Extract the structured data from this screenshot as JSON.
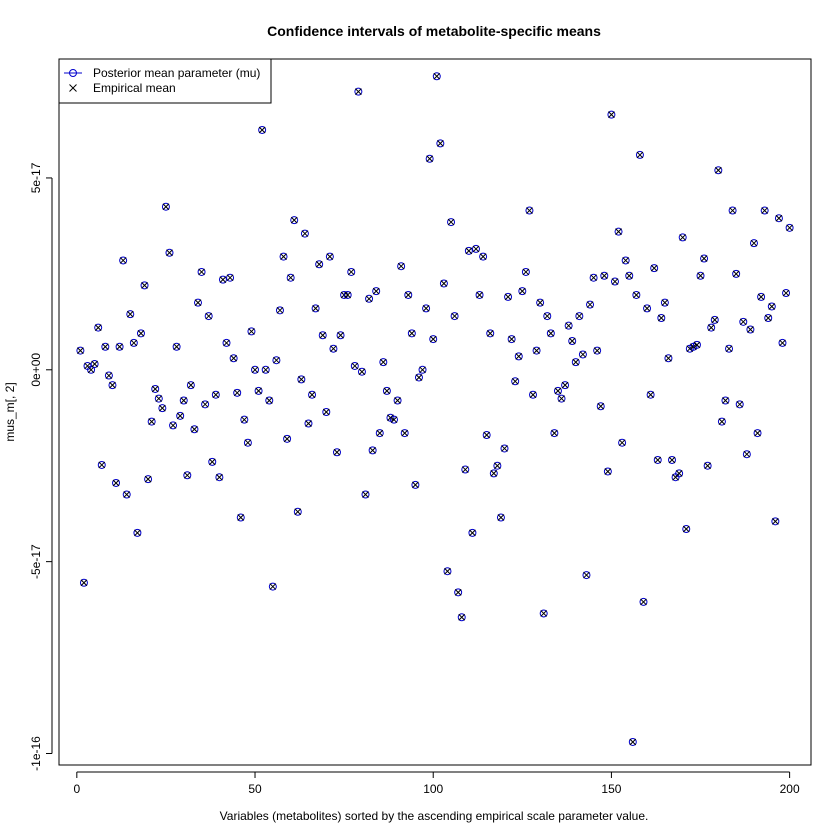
{
  "chart_data": {
    "type": "scatter",
    "title": "Confidence intervals of metabolite-specific means",
    "xlabel": "Variables (metabolites) sorted by the ascending empirical scale parameter value.",
    "ylabel": "mus_m[, 2]",
    "xlim": [
      -5,
      206
    ],
    "ylim": [
      -1.03e-16,
      8.1e-17
    ],
    "x_ticks": [
      0,
      50,
      100,
      150,
      200
    ],
    "x_tick_labels": [
      "0",
      "50",
      "100",
      "150",
      "200"
    ],
    "y_ticks": [
      -1e-16,
      -5e-17,
      0,
      5e-17
    ],
    "y_tick_labels": [
      "-1e-16",
      "-5e-17",
      "0e+00",
      "5e-17"
    ],
    "grid": false,
    "legend_position": "top-left",
    "series": [
      {
        "name": "Posterior mean parameter (mu)",
        "marker": "circle",
        "color": "#0000cc",
        "points": [
          [
            1,
            0.5
          ],
          [
            2,
            -5.55
          ],
          [
            3,
            0.1
          ],
          [
            4,
            0.0
          ],
          [
            5,
            0.15
          ],
          [
            6,
            1.1
          ],
          [
            7,
            -2.48
          ],
          [
            8,
            0.6
          ],
          [
            9,
            -0.15
          ],
          [
            10,
            -0.4
          ],
          [
            11,
            -2.95
          ],
          [
            12,
            0.6
          ],
          [
            13,
            2.85
          ],
          [
            14,
            -3.25
          ],
          [
            15,
            1.45
          ],
          [
            16,
            0.7
          ],
          [
            17,
            -4.25
          ],
          [
            18,
            0.95
          ],
          [
            19,
            2.2
          ],
          [
            20,
            -2.85
          ],
          [
            21,
            -1.35
          ],
          [
            22,
            -0.5
          ],
          [
            23,
            -0.75
          ],
          [
            24,
            -1.0
          ],
          [
            25,
            4.25
          ],
          [
            26,
            3.05
          ],
          [
            27,
            -1.45
          ],
          [
            28,
            0.6
          ],
          [
            29,
            -1.2
          ],
          [
            30,
            -0.8
          ],
          [
            31,
            -2.75
          ],
          [
            32,
            -0.4
          ],
          [
            33,
            -1.55
          ],
          [
            34,
            1.75
          ],
          [
            35,
            2.55
          ],
          [
            36,
            -0.9
          ],
          [
            37,
            1.4
          ],
          [
            38,
            -2.4
          ],
          [
            39,
            -0.65
          ],
          [
            40,
            -2.8
          ],
          [
            41,
            2.35
          ],
          [
            42,
            0.7
          ],
          [
            43,
            2.4
          ],
          [
            44,
            0.3
          ],
          [
            45,
            -0.6
          ],
          [
            46,
            -3.85
          ],
          [
            47,
            -1.3
          ],
          [
            48,
            -1.9
          ],
          [
            49,
            1.0
          ],
          [
            50,
            0.0
          ],
          [
            51,
            -0.55
          ],
          [
            52,
            6.25
          ],
          [
            53,
            0.0
          ],
          [
            54,
            -0.8
          ],
          [
            55,
            -5.65
          ],
          [
            56,
            0.25
          ],
          [
            57,
            1.55
          ],
          [
            58,
            2.95
          ],
          [
            59,
            -1.8
          ],
          [
            60,
            2.4
          ],
          [
            61,
            3.9
          ],
          [
            62,
            -3.7
          ],
          [
            63,
            -0.25
          ],
          [
            64,
            3.55
          ],
          [
            65,
            -1.4
          ],
          [
            66,
            -0.65
          ],
          [
            67,
            1.6
          ],
          [
            68,
            2.75
          ],
          [
            69,
            0.9
          ],
          [
            70,
            -1.1
          ],
          [
            71,
            2.95
          ],
          [
            72,
            0.55
          ],
          [
            73,
            -2.15
          ],
          [
            74,
            0.9
          ],
          [
            75,
            1.95
          ],
          [
            76,
            1.95
          ],
          [
            77,
            2.55
          ],
          [
            78,
            0.1
          ],
          [
            79,
            7.25
          ],
          [
            80,
            -0.05
          ],
          [
            81,
            -3.25
          ],
          [
            82,
            1.85
          ],
          [
            83,
            -2.1
          ],
          [
            84,
            2.05
          ],
          [
            85,
            -1.65
          ],
          [
            86,
            0.2
          ],
          [
            87,
            -0.55
          ],
          [
            88,
            -1.25
          ],
          [
            89,
            -1.3
          ],
          [
            90,
            -0.8
          ],
          [
            91,
            2.7
          ],
          [
            92,
            -1.65
          ],
          [
            93,
            1.95
          ],
          [
            94,
            0.95
          ],
          [
            95,
            -3.0
          ],
          [
            96,
            -0.2
          ],
          [
            97,
            0.0
          ],
          [
            98,
            1.6
          ],
          [
            99,
            5.5
          ],
          [
            100,
            0.8
          ],
          [
            101,
            7.65
          ],
          [
            102,
            5.9
          ],
          [
            103,
            2.25
          ],
          [
            104,
            -5.25
          ],
          [
            105,
            3.85
          ],
          [
            106,
            1.4
          ],
          [
            107,
            -5.8
          ],
          [
            108,
            -6.45
          ],
          [
            109,
            -2.6
          ],
          [
            110,
            3.1
          ],
          [
            111,
            -4.25
          ],
          [
            112,
            3.15
          ],
          [
            113,
            1.95
          ],
          [
            114,
            2.95
          ],
          [
            115,
            -1.7
          ],
          [
            116,
            0.95
          ],
          [
            117,
            -2.7
          ],
          [
            118,
            -2.5
          ],
          [
            119,
            -3.85
          ],
          [
            120,
            -2.05
          ],
          [
            121,
            1.9
          ],
          [
            122,
            0.8
          ],
          [
            123,
            -0.3
          ],
          [
            124,
            0.35
          ],
          [
            125,
            2.05
          ],
          [
            126,
            2.55
          ],
          [
            127,
            4.15
          ],
          [
            128,
            -0.65
          ],
          [
            129,
            0.5
          ],
          [
            130,
            1.75
          ],
          [
            131,
            -6.35
          ],
          [
            132,
            1.4
          ],
          [
            133,
            0.95
          ],
          [
            134,
            -1.65
          ],
          [
            135,
            -0.55
          ],
          [
            136,
            -0.75
          ],
          [
            137,
            -0.4
          ],
          [
            138,
            1.15
          ],
          [
            139,
            0.75
          ],
          [
            140,
            0.2
          ],
          [
            141,
            1.4
          ],
          [
            142,
            0.4
          ],
          [
            143,
            -5.35
          ],
          [
            144,
            1.7
          ],
          [
            145,
            2.4
          ],
          [
            146,
            0.5
          ],
          [
            147,
            -0.95
          ],
          [
            148,
            2.45
          ],
          [
            149,
            -2.65
          ],
          [
            150,
            6.65
          ],
          [
            151,
            2.3
          ],
          [
            152,
            3.6
          ],
          [
            153,
            -1.9
          ],
          [
            154,
            2.85
          ],
          [
            155,
            2.45
          ],
          [
            156,
            -9.7
          ],
          [
            157,
            1.95
          ],
          [
            158,
            5.6
          ],
          [
            159,
            -6.05
          ],
          [
            160,
            1.6
          ],
          [
            161,
            -0.65
          ],
          [
            162,
            2.65
          ],
          [
            163,
            -2.35
          ],
          [
            164,
            1.35
          ],
          [
            165,
            1.75
          ],
          [
            166,
            0.3
          ],
          [
            167,
            -2.35
          ],
          [
            168,
            -2.8
          ],
          [
            169,
            -2.7
          ],
          [
            170,
            3.45
          ],
          [
            171,
            -4.15
          ],
          [
            172,
            0.55
          ],
          [
            173,
            0.6
          ],
          [
            174,
            0.65
          ],
          [
            175,
            2.45
          ],
          [
            176,
            2.9
          ],
          [
            177,
            -2.5
          ],
          [
            178,
            1.1
          ],
          [
            179,
            1.3
          ],
          [
            180,
            5.2
          ],
          [
            181,
            -1.35
          ],
          [
            182,
            -0.8
          ],
          [
            183,
            0.55
          ],
          [
            184,
            4.15
          ],
          [
            185,
            2.5
          ],
          [
            186,
            -0.9
          ],
          [
            187,
            1.25
          ],
          [
            188,
            -2.2
          ],
          [
            189,
            1.05
          ],
          [
            190,
            3.3
          ],
          [
            191,
            -1.65
          ],
          [
            192,
            1.9
          ],
          [
            193,
            4.15
          ],
          [
            194,
            1.35
          ],
          [
            195,
            1.65
          ],
          [
            196,
            -3.95
          ],
          [
            197,
            3.95
          ],
          [
            198,
            0.7
          ],
          [
            199,
            2.0
          ],
          [
            200,
            3.7
          ]
        ]
      },
      {
        "name": "Empirical mean",
        "marker": "x",
        "color": "#000000",
        "same_points_as_series": 0
      }
    ],
    "y_values_scale_note": "point y values are in units of 1e-17"
  },
  "legend": {
    "items": [
      {
        "label": "Posterior mean parameter (mu)",
        "marker": "circle-line",
        "color": "#0000cc"
      },
      {
        "label": "Empirical mean",
        "marker": "x",
        "color": "#000000"
      }
    ]
  }
}
